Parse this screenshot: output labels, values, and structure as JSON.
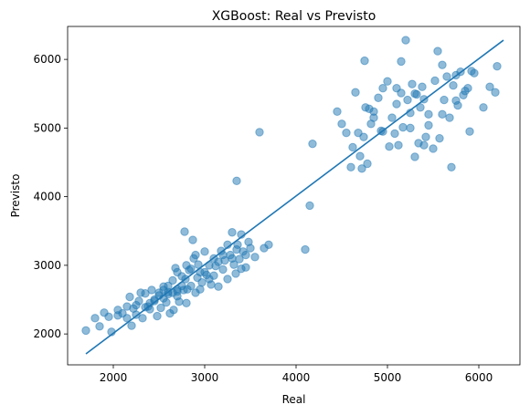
{
  "chart_data": {
    "type": "scatter",
    "title": "XGBoost: Real vs Previsto",
    "xlabel": "Real",
    "ylabel": "Previsto",
    "xlim": [
      1500,
      6450
    ],
    "ylim": [
      1550,
      6480
    ],
    "xticks": [
      2000,
      3000,
      4000,
      5000,
      6000
    ],
    "yticks": [
      2000,
      3000,
      4000,
      5000,
      6000
    ],
    "grid": false,
    "point_color": "#1f77b4",
    "point_alpha": 0.5,
    "line_color": "#1f77b4",
    "reference_line": {
      "x": [
        1700,
        6270
      ],
      "y": [
        1710,
        6280
      ]
    },
    "series": [
      {
        "points": [
          [
            1700,
            2050
          ],
          [
            1800,
            2230
          ],
          [
            1850,
            2110
          ],
          [
            1900,
            2310
          ],
          [
            1950,
            2250
          ],
          [
            1980,
            2030
          ],
          [
            2050,
            2270
          ],
          [
            2100,
            2300
          ],
          [
            2150,
            2400
          ],
          [
            2180,
            2540
          ],
          [
            2200,
            2120
          ],
          [
            2220,
            2370
          ],
          [
            2250,
            2280
          ],
          [
            2280,
            2480
          ],
          [
            2300,
            2600
          ],
          [
            2320,
            2230
          ],
          [
            2350,
            2590
          ],
          [
            2380,
            2400
          ],
          [
            2400,
            2360
          ],
          [
            2420,
            2640
          ],
          [
            2450,
            2500
          ],
          [
            2480,
            2260
          ],
          [
            2500,
            2560
          ],
          [
            2520,
            2380
          ],
          [
            2550,
            2690
          ],
          [
            2580,
            2460
          ],
          [
            2600,
            2610
          ],
          [
            2620,
            2300
          ],
          [
            2650,
            2780
          ],
          [
            2660,
            2350
          ],
          [
            2680,
            2960
          ],
          [
            2700,
            2550
          ],
          [
            2700,
            2650
          ],
          [
            2720,
            2470
          ],
          [
            2750,
            2840
          ],
          [
            2770,
            2640
          ],
          [
            2780,
            3490
          ],
          [
            2790,
            2800
          ],
          [
            2800,
            2450
          ],
          [
            2810,
            2650
          ],
          [
            2830,
            2930
          ],
          [
            2850,
            2700
          ],
          [
            2870,
            3370
          ],
          [
            2880,
            3100
          ],
          [
            2900,
            2600
          ],
          [
            2920,
            2820
          ],
          [
            2930,
            3010
          ],
          [
            2950,
            2900
          ],
          [
            2970,
            2750
          ],
          [
            3000,
            3200
          ],
          [
            3020,
            2860
          ],
          [
            3050,
            3000
          ],
          [
            3070,
            2720
          ],
          [
            3100,
            3100
          ],
          [
            3120,
            2990
          ],
          [
            3150,
            2690
          ],
          [
            3180,
            3210
          ],
          [
            3200,
            2940
          ],
          [
            3220,
            3070
          ],
          [
            3250,
            2800
          ],
          [
            3280,
            3150
          ],
          [
            3300,
            3480
          ],
          [
            3320,
            3010
          ],
          [
            3340,
            2880
          ],
          [
            3350,
            4230
          ],
          [
            3360,
            3300
          ],
          [
            3380,
            3090
          ],
          [
            3400,
            3450
          ],
          [
            3420,
            3200
          ],
          [
            3450,
            2970
          ],
          [
            3480,
            3340
          ],
          [
            3500,
            3250
          ],
          [
            3550,
            3120
          ],
          [
            3600,
            4940
          ],
          [
            3650,
            3250
          ],
          [
            3700,
            3300
          ],
          [
            4100,
            3230
          ],
          [
            4150,
            3870
          ],
          [
            4180,
            4770
          ],
          [
            4450,
            5240
          ],
          [
            4500,
            5060
          ],
          [
            4550,
            4930
          ],
          [
            4600,
            4430
          ],
          [
            4620,
            4720
          ],
          [
            4650,
            5520
          ],
          [
            4680,
            4930
          ],
          [
            4700,
            4590
          ],
          [
            4720,
            4410
          ],
          [
            4740,
            4870
          ],
          [
            4750,
            5980
          ],
          [
            4760,
            5300
          ],
          [
            4780,
            4480
          ],
          [
            4800,
            5280
          ],
          [
            4820,
            5060
          ],
          [
            4850,
            5240
          ],
          [
            4900,
            5440
          ],
          [
            4930,
            4960
          ],
          [
            4950,
            5580
          ],
          [
            5000,
            5680
          ],
          [
            5020,
            4730
          ],
          [
            5050,
            5150
          ],
          [
            5080,
            4920
          ],
          [
            5100,
            5580
          ],
          [
            5120,
            4750
          ],
          [
            5150,
            5510
          ],
          [
            5170,
            5010
          ],
          [
            5200,
            6280
          ],
          [
            5220,
            5410
          ],
          [
            5250,
            5220
          ],
          [
            5270,
            5640
          ],
          [
            5300,
            4580
          ],
          [
            5320,
            5490
          ],
          [
            5340,
            4780
          ],
          [
            5360,
            5300
          ],
          [
            5380,
            5600
          ],
          [
            5400,
            5420
          ],
          [
            5420,
            4870
          ],
          [
            5450,
            5040
          ],
          [
            5500,
            4700
          ],
          [
            5520,
            5690
          ],
          [
            5550,
            6120
          ],
          [
            5570,
            4850
          ],
          [
            5600,
            5920
          ],
          [
            5620,
            5410
          ],
          [
            5650,
            5750
          ],
          [
            5680,
            5150
          ],
          [
            5700,
            4430
          ],
          [
            5720,
            5620
          ],
          [
            5750,
            5770
          ],
          [
            5770,
            5330
          ],
          [
            5800,
            5820
          ],
          [
            5830,
            5480
          ],
          [
            5850,
            5540
          ],
          [
            5880,
            5580
          ],
          [
            5900,
            4950
          ],
          [
            5920,
            5830
          ],
          [
            5950,
            5800
          ],
          [
            6050,
            5300
          ],
          [
            6120,
            5600
          ],
          [
            6180,
            5520
          ],
          [
            6200,
            5900
          ],
          [
            5400,
            4750
          ],
          [
            5250,
            5000
          ],
          [
            4950,
            4950
          ],
          [
            5100,
            5350
          ],
          [
            4850,
            5150
          ],
          [
            5600,
            5200
          ],
          [
            5300,
            5500
          ],
          [
            5450,
            5200
          ],
          [
            5750,
            5400
          ],
          [
            5150,
            5970
          ],
          [
            2450,
            2480
          ],
          [
            2350,
            2390
          ],
          [
            2550,
            2520
          ],
          [
            2650,
            2600
          ],
          [
            2750,
            2700
          ],
          [
            2600,
            2580
          ],
          [
            2950,
            2650
          ],
          [
            3050,
            2800
          ],
          [
            3150,
            3050
          ],
          [
            2850,
            2950
          ],
          [
            3250,
            3300
          ],
          [
            3350,
            3230
          ],
          [
            3450,
            3150
          ],
          [
            2250,
            2420
          ],
          [
            2150,
            2230
          ],
          [
            2050,
            2350
          ],
          [
            2500,
            2600
          ],
          [
            2700,
            2900
          ],
          [
            2900,
            3150
          ],
          [
            3100,
            2850
          ],
          [
            3300,
            3100
          ],
          [
            3400,
            2950
          ],
          [
            2800,
            3000
          ],
          [
            2600,
            2700
          ],
          [
            2400,
            2450
          ],
          [
            3000,
            2900
          ],
          [
            3200,
            3150
          ],
          [
            2550,
            2640
          ],
          [
            2700,
            2620
          ]
        ]
      }
    ]
  }
}
